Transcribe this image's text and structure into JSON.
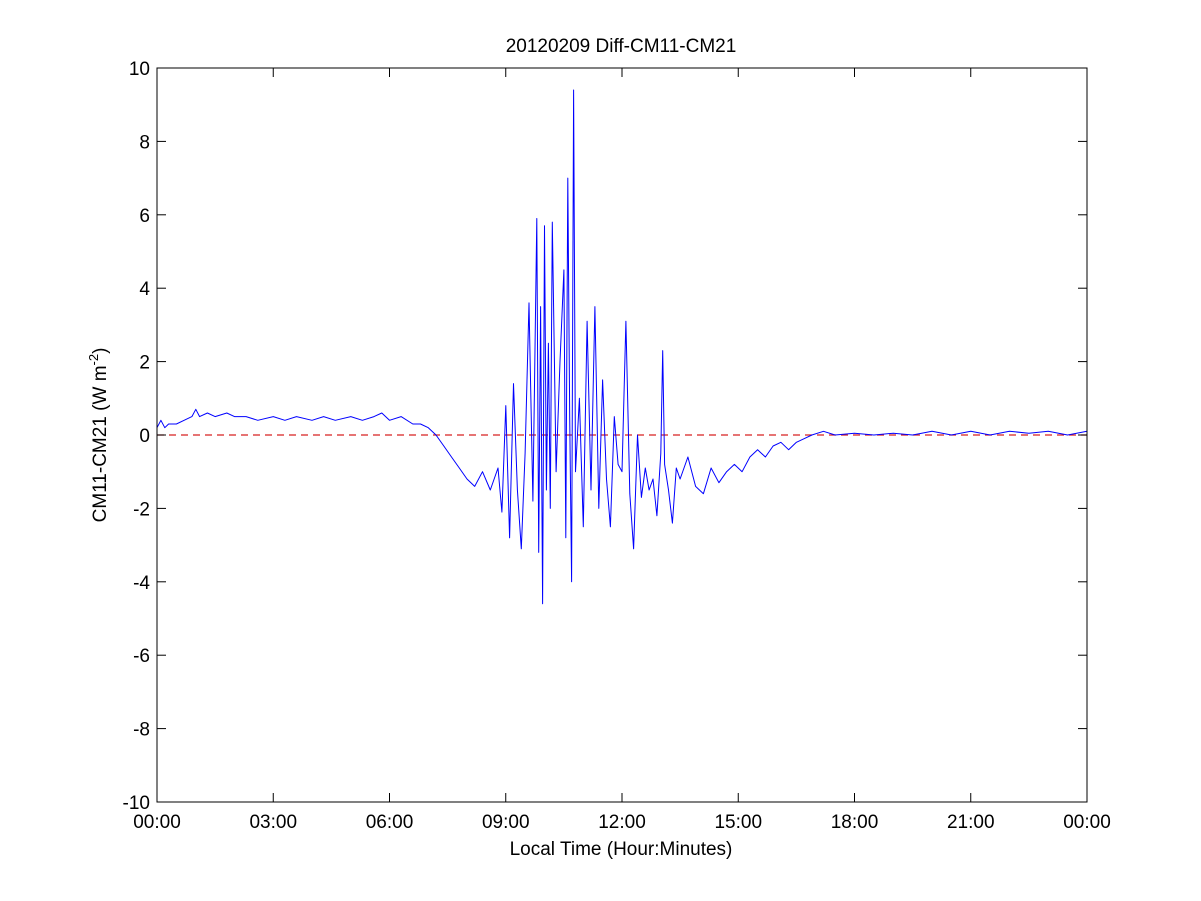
{
  "chart_data": {
    "type": "line",
    "title": "20120209 Diff-CM11-CM21",
    "xlabel": "Local Time (Hour:Minutes)",
    "ylabel": {
      "main": "CM11-CM21 (W m",
      "superscript": "-2",
      "close": ")"
    },
    "xlim_hours": [
      0,
      24
    ],
    "ylim": [
      -10,
      10
    ],
    "x_ticks": [
      {
        "hour": 0,
        "label": "00:00"
      },
      {
        "hour": 3,
        "label": "03:00"
      },
      {
        "hour": 6,
        "label": "06:00"
      },
      {
        "hour": 9,
        "label": "09:00"
      },
      {
        "hour": 12,
        "label": "12:00"
      },
      {
        "hour": 15,
        "label": "15:00"
      },
      {
        "hour": 18,
        "label": "18:00"
      },
      {
        "hour": 21,
        "label": "21:00"
      },
      {
        "hour": 24,
        "label": "00:00"
      }
    ],
    "y_ticks": [
      10,
      8,
      6,
      4,
      2,
      0,
      -2,
      -4,
      -6,
      -8,
      -10
    ],
    "grid": false,
    "reference_line": {
      "y": 0,
      "style": "dashed",
      "color": "#d62020"
    },
    "series": [
      {
        "color": "#0000ff",
        "x_hours": [
          0,
          0.1,
          0.2,
          0.3,
          0.5,
          0.7,
          0.9,
          1.0,
          1.1,
          1.3,
          1.5,
          1.8,
          2.0,
          2.3,
          2.6,
          3.0,
          3.3,
          3.6,
          4.0,
          4.3,
          4.6,
          5.0,
          5.3,
          5.6,
          5.8,
          6.0,
          6.3,
          6.6,
          6.8,
          7.0,
          7.2,
          7.4,
          7.6,
          7.8,
          8.0,
          8.2,
          8.4,
          8.6,
          8.8,
          8.9,
          9.0,
          9.1,
          9.2,
          9.3,
          9.4,
          9.5,
          9.6,
          9.7,
          9.8,
          9.85,
          9.9,
          9.95,
          10.0,
          10.05,
          10.1,
          10.15,
          10.2,
          10.3,
          10.4,
          10.5,
          10.55,
          10.6,
          10.65,
          10.7,
          10.75,
          10.8,
          10.9,
          11.0,
          11.1,
          11.2,
          11.3,
          11.4,
          11.5,
          11.6,
          11.7,
          11.8,
          11.9,
          12.0,
          12.1,
          12.2,
          12.3,
          12.4,
          12.5,
          12.6,
          12.7,
          12.8,
          12.9,
          13.0,
          13.05,
          13.1,
          13.2,
          13.3,
          13.4,
          13.5,
          13.7,
          13.9,
          14.1,
          14.3,
          14.5,
          14.7,
          14.9,
          15.1,
          15.3,
          15.5,
          15.7,
          15.9,
          16.1,
          16.3,
          16.5,
          16.7,
          16.9,
          17.2,
          17.5,
          18.0,
          18.5,
          19.0,
          19.5,
          20.0,
          20.5,
          21.0,
          21.5,
          22.0,
          22.5,
          23.0,
          23.5,
          24.0
        ],
        "y": [
          0.2,
          0.4,
          0.2,
          0.3,
          0.3,
          0.4,
          0.5,
          0.7,
          0.5,
          0.6,
          0.5,
          0.6,
          0.5,
          0.5,
          0.4,
          0.5,
          0.4,
          0.5,
          0.4,
          0.5,
          0.4,
          0.5,
          0.4,
          0.5,
          0.6,
          0.4,
          0.5,
          0.3,
          0.3,
          0.2,
          0.0,
          -0.3,
          -0.6,
          -0.9,
          -1.2,
          -1.4,
          -1.0,
          -1.5,
          -0.9,
          -2.1,
          0.8,
          -2.8,
          1.4,
          -1.5,
          -3.1,
          -0.5,
          3.6,
          -1.8,
          5.9,
          -3.2,
          3.5,
          -4.6,
          5.7,
          -1.5,
          2.5,
          -2.0,
          5.8,
          -1.0,
          2.0,
          4.5,
          -2.8,
          7.0,
          0.5,
          -4.0,
          9.4,
          -1.0,
          1.0,
          -2.5,
          3.1,
          -1.5,
          3.5,
          -2.0,
          1.5,
          -1.2,
          -2.5,
          0.5,
          -0.8,
          -1.0,
          3.1,
          -1.6,
          -3.1,
          0.0,
          -1.7,
          -0.9,
          -1.5,
          -1.2,
          -2.2,
          -0.5,
          2.3,
          -0.8,
          -1.5,
          -2.4,
          -0.9,
          -1.2,
          -0.6,
          -1.4,
          -1.6,
          -0.9,
          -1.3,
          -1.0,
          -0.8,
          -1.0,
          -0.6,
          -0.4,
          -0.6,
          -0.3,
          -0.2,
          -0.4,
          -0.2,
          -0.1,
          0.0,
          0.1,
          0.0,
          0.05,
          0.0,
          0.05,
          0.0,
          0.1,
          0.0,
          0.1,
          0.0,
          0.1,
          0.05,
          0.1,
          0.0,
          0.1
        ]
      }
    ]
  }
}
